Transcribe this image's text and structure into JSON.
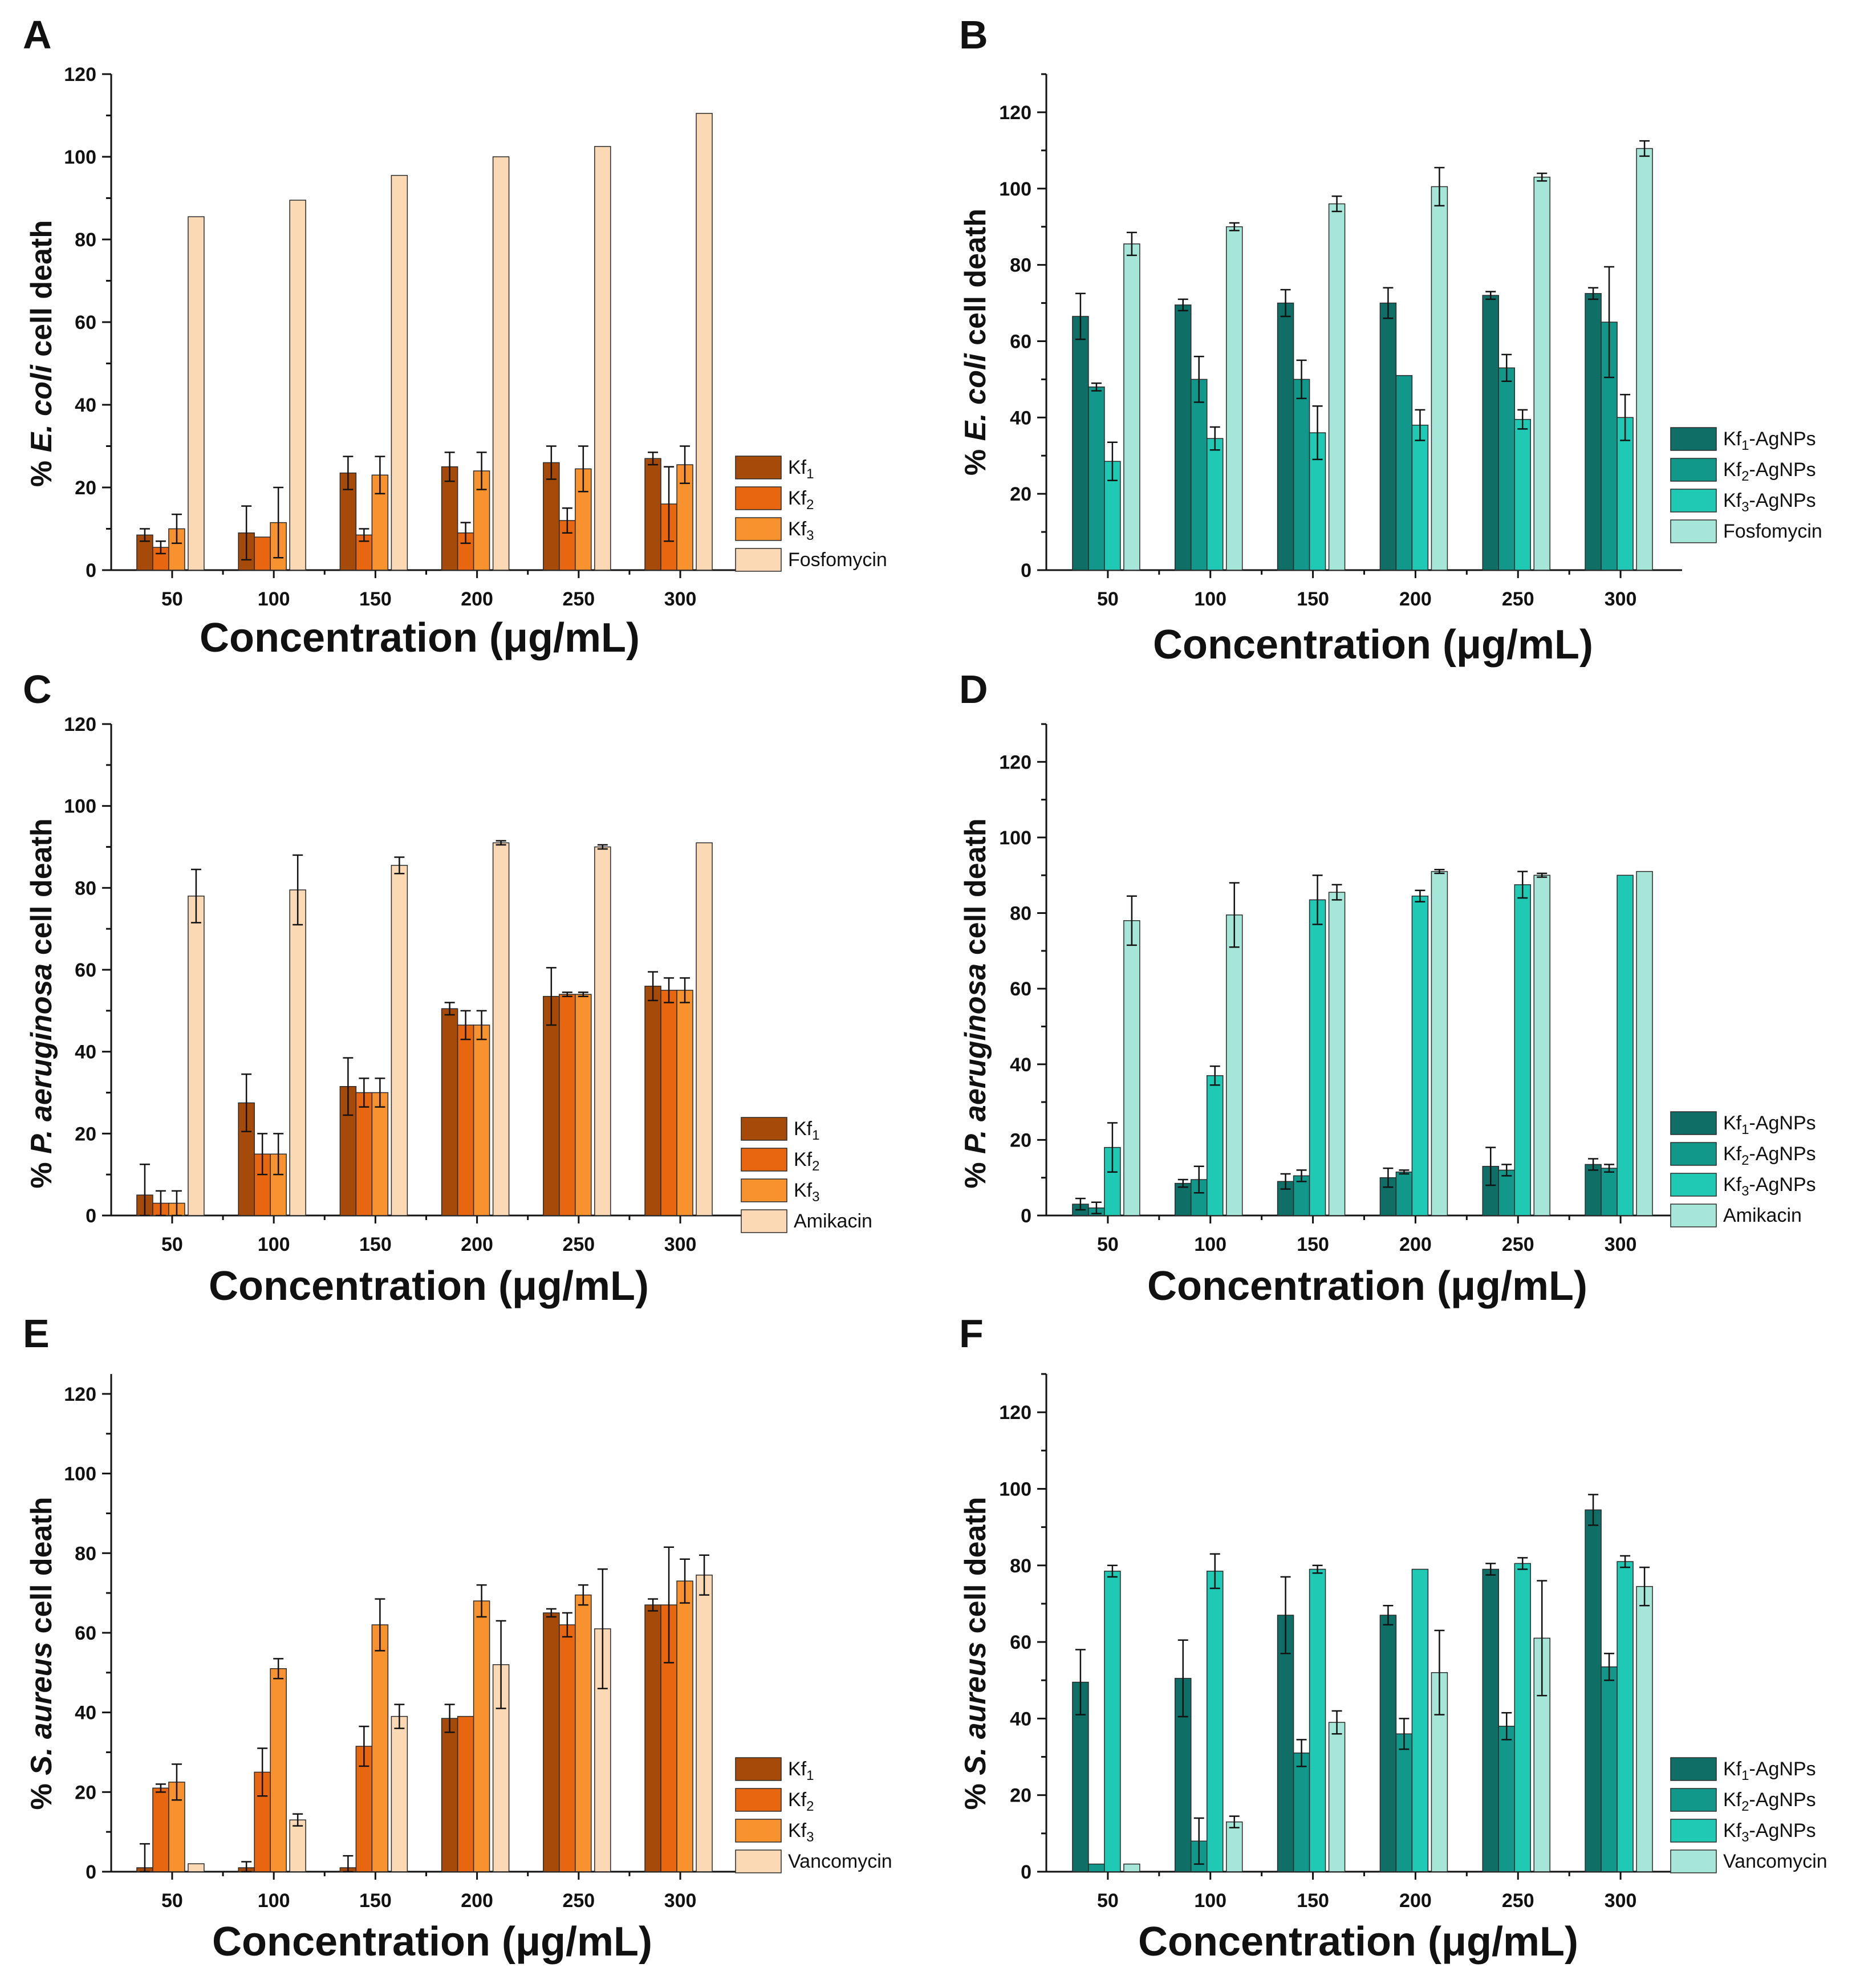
{
  "figure": {
    "background": "#ffffff"
  },
  "xlabel": "Concentration (μg/mL)",
  "categories": [
    "50",
    "100",
    "150",
    "200",
    "250",
    "300"
  ],
  "yticks": [
    "0",
    "20",
    "40",
    "60",
    "80",
    "100",
    "120"
  ],
  "palettes": {
    "orange": [
      "#a64a0a",
      "#e8660f",
      "#f7922e",
      "#fbd9b5"
    ],
    "teal": [
      "#0f6e66",
      "#12988a",
      "#1fc9b4",
      "#a6e6d8"
    ]
  },
  "chart_data": [
    {
      "panel": "A",
      "type": "bar",
      "palette": "orange",
      "ylabel_italic": "E. coli",
      "ylabel_rest": "cell death",
      "ylabel_prefix": "% ",
      "ylim": [
        0,
        120
      ],
      "series": [
        {
          "name": "Kf",
          "sub": "1",
          "suffix": "",
          "values": [
            8.5,
            9,
            23.5,
            25,
            26,
            27
          ],
          "errors": [
            1.5,
            6.5,
            4,
            3.5,
            4,
            1.5
          ]
        },
        {
          "name": "Kf",
          "sub": "2",
          "suffix": "",
          "values": [
            5.5,
            8,
            8.5,
            9,
            12,
            16
          ],
          "errors": [
            1.5,
            0,
            1.5,
            2.5,
            3,
            9
          ]
        },
        {
          "name": "Kf",
          "sub": "3",
          "suffix": "",
          "values": [
            10,
            11.5,
            23,
            24,
            24.5,
            25.5
          ],
          "errors": [
            3.5,
            8.5,
            4.5,
            4.5,
            5.5,
            4.5
          ]
        },
        {
          "name": "Fosfomycin",
          "sub": "",
          "suffix": "",
          "values": [
            85.5,
            89.5,
            95.5,
            100,
            102.5,
            110.5
          ],
          "errors": [
            0,
            0,
            0,
            0,
            0,
            0
          ]
        }
      ]
    },
    {
      "panel": "B",
      "type": "bar",
      "palette": "teal",
      "ylabel_italic": "E. coli",
      "ylabel_rest": "cell death",
      "ylabel_prefix": "% ",
      "ylim": [
        0,
        130
      ],
      "series": [
        {
          "name": "Kf",
          "sub": "1",
          "suffix": "-AgNPs",
          "values": [
            66.5,
            69.5,
            70,
            70,
            72,
            72.5
          ],
          "errors": [
            6,
            1.5,
            3.5,
            4,
            1,
            1.5
          ]
        },
        {
          "name": "Kf",
          "sub": "2",
          "suffix": "-AgNPs",
          "values": [
            48,
            50,
            50,
            51,
            53,
            65
          ],
          "errors": [
            1,
            6,
            5,
            0,
            3.5,
            14.5
          ]
        },
        {
          "name": "Kf",
          "sub": "3",
          "suffix": "-AgNPs",
          "values": [
            28.5,
            34.5,
            36,
            38,
            39.5,
            40
          ],
          "errors": [
            5,
            3,
            7,
            4,
            2.5,
            6
          ]
        },
        {
          "name": "Fosfomycin",
          "sub": "",
          "suffix": "",
          "values": [
            85.5,
            90,
            96,
            100.5,
            103,
            110.5
          ],
          "errors": [
            3,
            1,
            2,
            5,
            1,
            2
          ]
        }
      ]
    },
    {
      "panel": "C",
      "type": "bar",
      "palette": "orange",
      "ylabel_italic": "P. aeruginosa",
      "ylabel_rest": "cell death",
      "ylabel_prefix": "% ",
      "ylim": [
        0,
        120
      ],
      "series": [
        {
          "name": "Kf",
          "sub": "1",
          "suffix": "",
          "values": [
            5,
            27.5,
            31.5,
            50.5,
            53.5,
            56
          ],
          "errors": [
            7.5,
            7,
            7,
            1.5,
            7,
            3.5
          ]
        },
        {
          "name": "Kf",
          "sub": "2",
          "suffix": "",
          "values": [
            3,
            15,
            30,
            46.5,
            54,
            55
          ],
          "errors": [
            3,
            5,
            3.5,
            3.5,
            0.5,
            3
          ]
        },
        {
          "name": "Kf",
          "sub": "3",
          "suffix": "",
          "values": [
            3,
            15,
            30,
            46.5,
            54,
            55
          ],
          "errors": [
            3,
            5,
            3.5,
            3.5,
            0.5,
            3
          ]
        },
        {
          "name": "Amikacin",
          "sub": "",
          "suffix": "",
          "values": [
            78,
            79.5,
            85.5,
            91,
            90,
            91
          ],
          "errors": [
            6.5,
            8.5,
            2,
            0.5,
            0.5,
            0
          ]
        }
      ]
    },
    {
      "panel": "D",
      "type": "bar",
      "palette": "teal",
      "ylabel_italic": "P. aeruginosa",
      "ylabel_rest": "cell death",
      "ylabel_prefix": "% ",
      "ylim": [
        0,
        130
      ],
      "series": [
        {
          "name": "Kf",
          "sub": "1",
          "suffix": "-AgNPs",
          "values": [
            3,
            8.5,
            9,
            10,
            13,
            13.5
          ],
          "errors": [
            1.5,
            1,
            2,
            2.5,
            5,
            1.5
          ]
        },
        {
          "name": "Kf",
          "sub": "2",
          "suffix": "-AgNPs",
          "values": [
            2,
            9.5,
            10.5,
            11.5,
            12,
            12.5
          ],
          "errors": [
            1.5,
            3.5,
            1.5,
            0.5,
            1.5,
            1
          ]
        },
        {
          "name": "Kf",
          "sub": "3",
          "suffix": "-AgNPs",
          "values": [
            18,
            37,
            83.5,
            84.5,
            87.5,
            90
          ],
          "errors": [
            6.5,
            2.5,
            6.5,
            1.5,
            3.5,
            0
          ]
        },
        {
          "name": "Amikacin",
          "sub": "",
          "suffix": "",
          "values": [
            78,
            79.5,
            85.5,
            91,
            90,
            91
          ],
          "errors": [
            6.5,
            8.5,
            2,
            0.5,
            0.5,
            0
          ]
        }
      ]
    },
    {
      "panel": "E",
      "type": "bar",
      "palette": "orange",
      "ylabel_italic": "S. aureus",
      "ylabel_rest": "cell death",
      "ylabel_prefix": "% ",
      "ylim": [
        0,
        125
      ],
      "series": [
        {
          "name": "Kf",
          "sub": "1",
          "suffix": "",
          "values": [
            1,
            1,
            1,
            38.5,
            65,
            67
          ],
          "errors": [
            6,
            1.5,
            3,
            3.5,
            1,
            1.5
          ]
        },
        {
          "name": "Kf",
          "sub": "2",
          "suffix": "",
          "values": [
            21,
            25,
            31.5,
            39,
            62,
            67
          ],
          "errors": [
            1,
            6,
            5,
            0,
            3,
            14.5
          ]
        },
        {
          "name": "Kf",
          "sub": "3",
          "suffix": "",
          "values": [
            22.5,
            51,
            62,
            68,
            69.5,
            73
          ],
          "errors": [
            4.5,
            2.5,
            6.5,
            4,
            2.5,
            5.5
          ]
        },
        {
          "name": "Vancomycin",
          "sub": "",
          "suffix": "",
          "values": [
            2,
            13,
            39,
            52,
            61,
            74.5
          ],
          "errors": [
            0,
            1.5,
            3,
            11,
            15,
            5
          ]
        }
      ]
    },
    {
      "panel": "F",
      "type": "bar",
      "palette": "teal",
      "ylabel_italic": "S. aureus",
      "ylabel_rest": "cell death",
      "ylabel_prefix": "% ",
      "ylim": [
        0,
        130
      ],
      "series": [
        {
          "name": "Kf",
          "sub": "1",
          "suffix": "-AgNPs",
          "values": [
            49.5,
            50.5,
            67,
            67,
            79,
            94.5
          ],
          "errors": [
            8.5,
            10,
            10,
            2.5,
            1.5,
            4
          ]
        },
        {
          "name": "Kf",
          "sub": "2",
          "suffix": "-AgNPs",
          "values": [
            2,
            8,
            31,
            36,
            38,
            53.5
          ],
          "errors": [
            0,
            6,
            3.5,
            4,
            3.5,
            3.5
          ]
        },
        {
          "name": "Kf",
          "sub": "3",
          "suffix": "-AgNPs",
          "values": [
            78.5,
            78.5,
            79,
            79,
            80.5,
            81
          ],
          "errors": [
            1.5,
            4.5,
            1,
            0,
            1.5,
            1.5
          ]
        },
        {
          "name": "Vancomycin",
          "sub": "",
          "suffix": "",
          "values": [
            2,
            13,
            39,
            52,
            61,
            74.5
          ],
          "errors": [
            0,
            1.5,
            3,
            11,
            15,
            5
          ]
        }
      ]
    }
  ]
}
